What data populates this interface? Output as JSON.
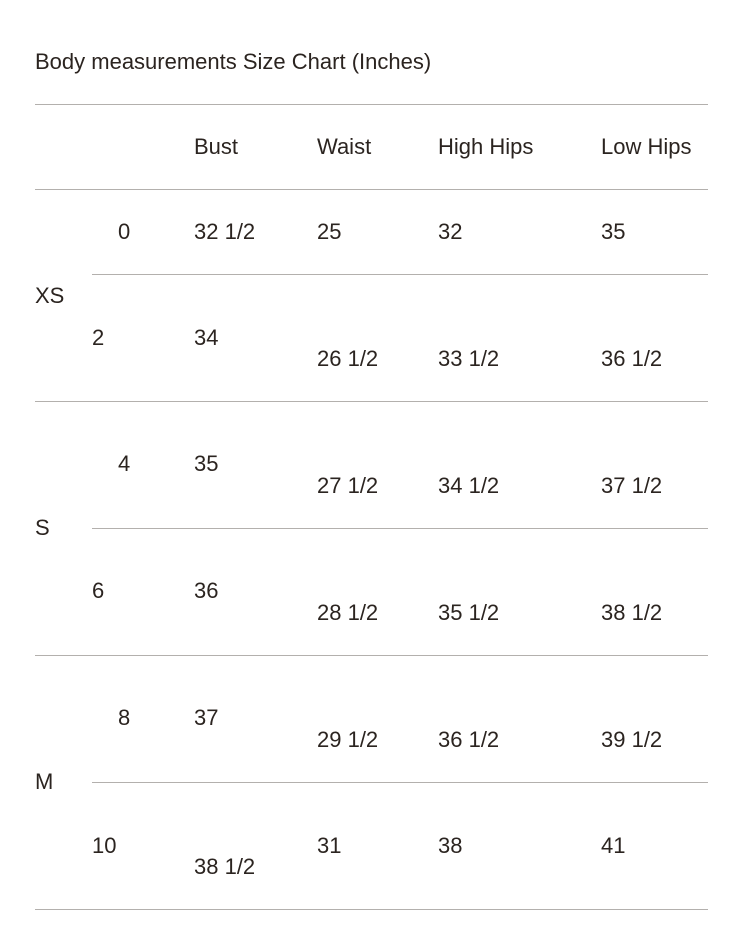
{
  "title": "Body measurements Size Chart (Inches)",
  "headers": [
    "Bust",
    "Waist",
    "High Hips",
    "Low Hips"
  ],
  "groups": [
    "XS",
    "S",
    "M"
  ],
  "rows": [
    {
      "size": "0",
      "bust": "32 1/2",
      "waist": "25",
      "high_hips": "32",
      "low_hips": "35"
    },
    {
      "size": "2",
      "bust": "34",
      "waist": "26 1/2",
      "high_hips": "33 1/2",
      "low_hips": "36 1/2"
    },
    {
      "size": "4",
      "bust": "35",
      "waist": "27 1/2",
      "high_hips": "34 1/2",
      "low_hips": "37 1/2"
    },
    {
      "size": "6",
      "bust": "36",
      "waist": "28 1/2",
      "high_hips": "35 1/2",
      "low_hips": "38 1/2"
    },
    {
      "size": "8",
      "bust": "37",
      "waist": "29 1/2",
      "high_hips": "36 1/2",
      "low_hips": "39 1/2"
    },
    {
      "size": "10",
      "bust": "38 1/2",
      "waist": "31",
      "high_hips": "38",
      "low_hips": "41"
    }
  ]
}
